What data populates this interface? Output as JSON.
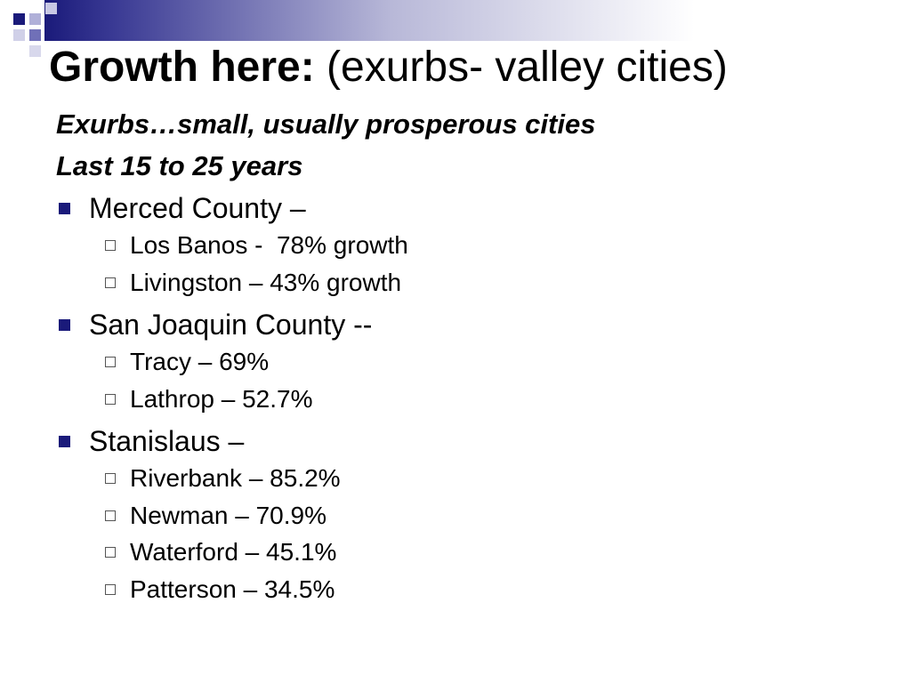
{
  "header": {
    "title_bold": "Growth here:",
    "title_rest": "(exurbs- valley cities)"
  },
  "subtitle": [
    "Exurbs…small, usually prosperous cities",
    "Last 15 to 25 years"
  ],
  "groups": [
    {
      "label": "Merced County –",
      "items": [
        "Los Banos -  78% growth",
        "Livingston – 43% growth"
      ]
    },
    {
      "label": "San Joaquin County --",
      "items": [
        "Tracy – 69%",
        "Lathrop – 52.7%"
      ]
    },
    {
      "label": "Stanislaus –",
      "items": [
        "Riverbank – 85.2%",
        "Newman – 70.9%",
        "Waterford – 45.1%",
        "Patterson – 34.5%"
      ]
    }
  ]
}
